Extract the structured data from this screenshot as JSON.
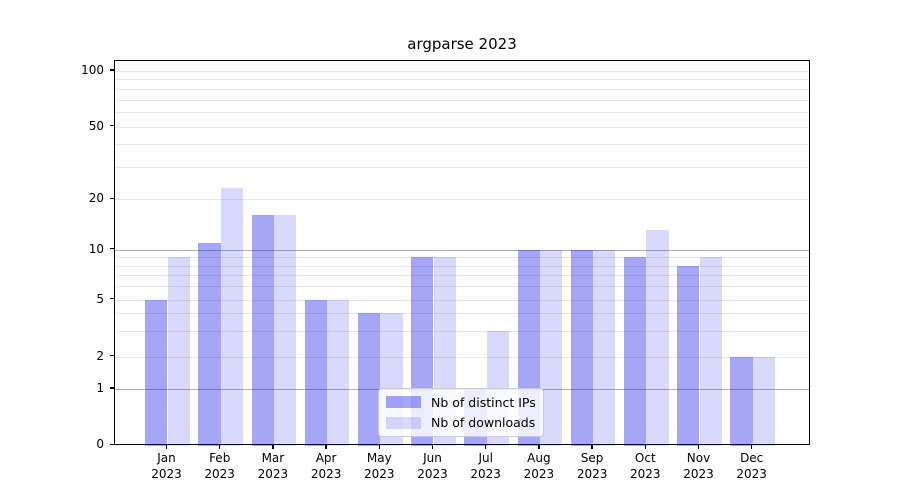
{
  "title": "argparse 2023",
  "chart_data": {
    "type": "bar",
    "scale": "symlog",
    "categories": [
      "Jan",
      "Feb",
      "Mar",
      "Apr",
      "May",
      "Jun",
      "Jul",
      "Aug",
      "Sep",
      "Oct",
      "Nov",
      "Dec"
    ],
    "year": "2023",
    "series": [
      {
        "name": "Nb of distinct IPs",
        "values": [
          5,
          11,
          16,
          5,
          4,
          9,
          1,
          10,
          10,
          9,
          8,
          2
        ],
        "color": "rgba(0,0,235,0.35)",
        "color_hex_on_white": "#a6a6f8"
      },
      {
        "name": "Nb of downloads",
        "values": [
          9,
          23,
          16,
          5,
          4,
          9,
          3,
          10,
          10,
          13,
          9,
          2
        ],
        "color": "rgba(0,0,235,0.15)",
        "color_hex_on_white": "#d9d9fb"
      }
    ],
    "yticks": [
      0,
      1,
      2,
      5,
      10,
      20,
      50,
      100
    ],
    "ylim": [
      0,
      115
    ],
    "major_gridlines": [
      1,
      10
    ],
    "minor_gridlines": [
      2,
      3,
      4,
      5,
      6,
      7,
      8,
      9,
      20,
      30,
      40,
      50,
      60,
      70,
      80,
      90,
      100
    ],
    "grid": true,
    "legend_position": "lower center",
    "colors": {
      "major_grid": "#b0b0b0",
      "minor_grid": "#e7e7e7",
      "axis": "#000000",
      "legend_border": "#cccccc"
    }
  },
  "legend": {
    "items": [
      {
        "label": "Nb of distinct IPs"
      },
      {
        "label": "Nb of downloads"
      }
    ]
  }
}
